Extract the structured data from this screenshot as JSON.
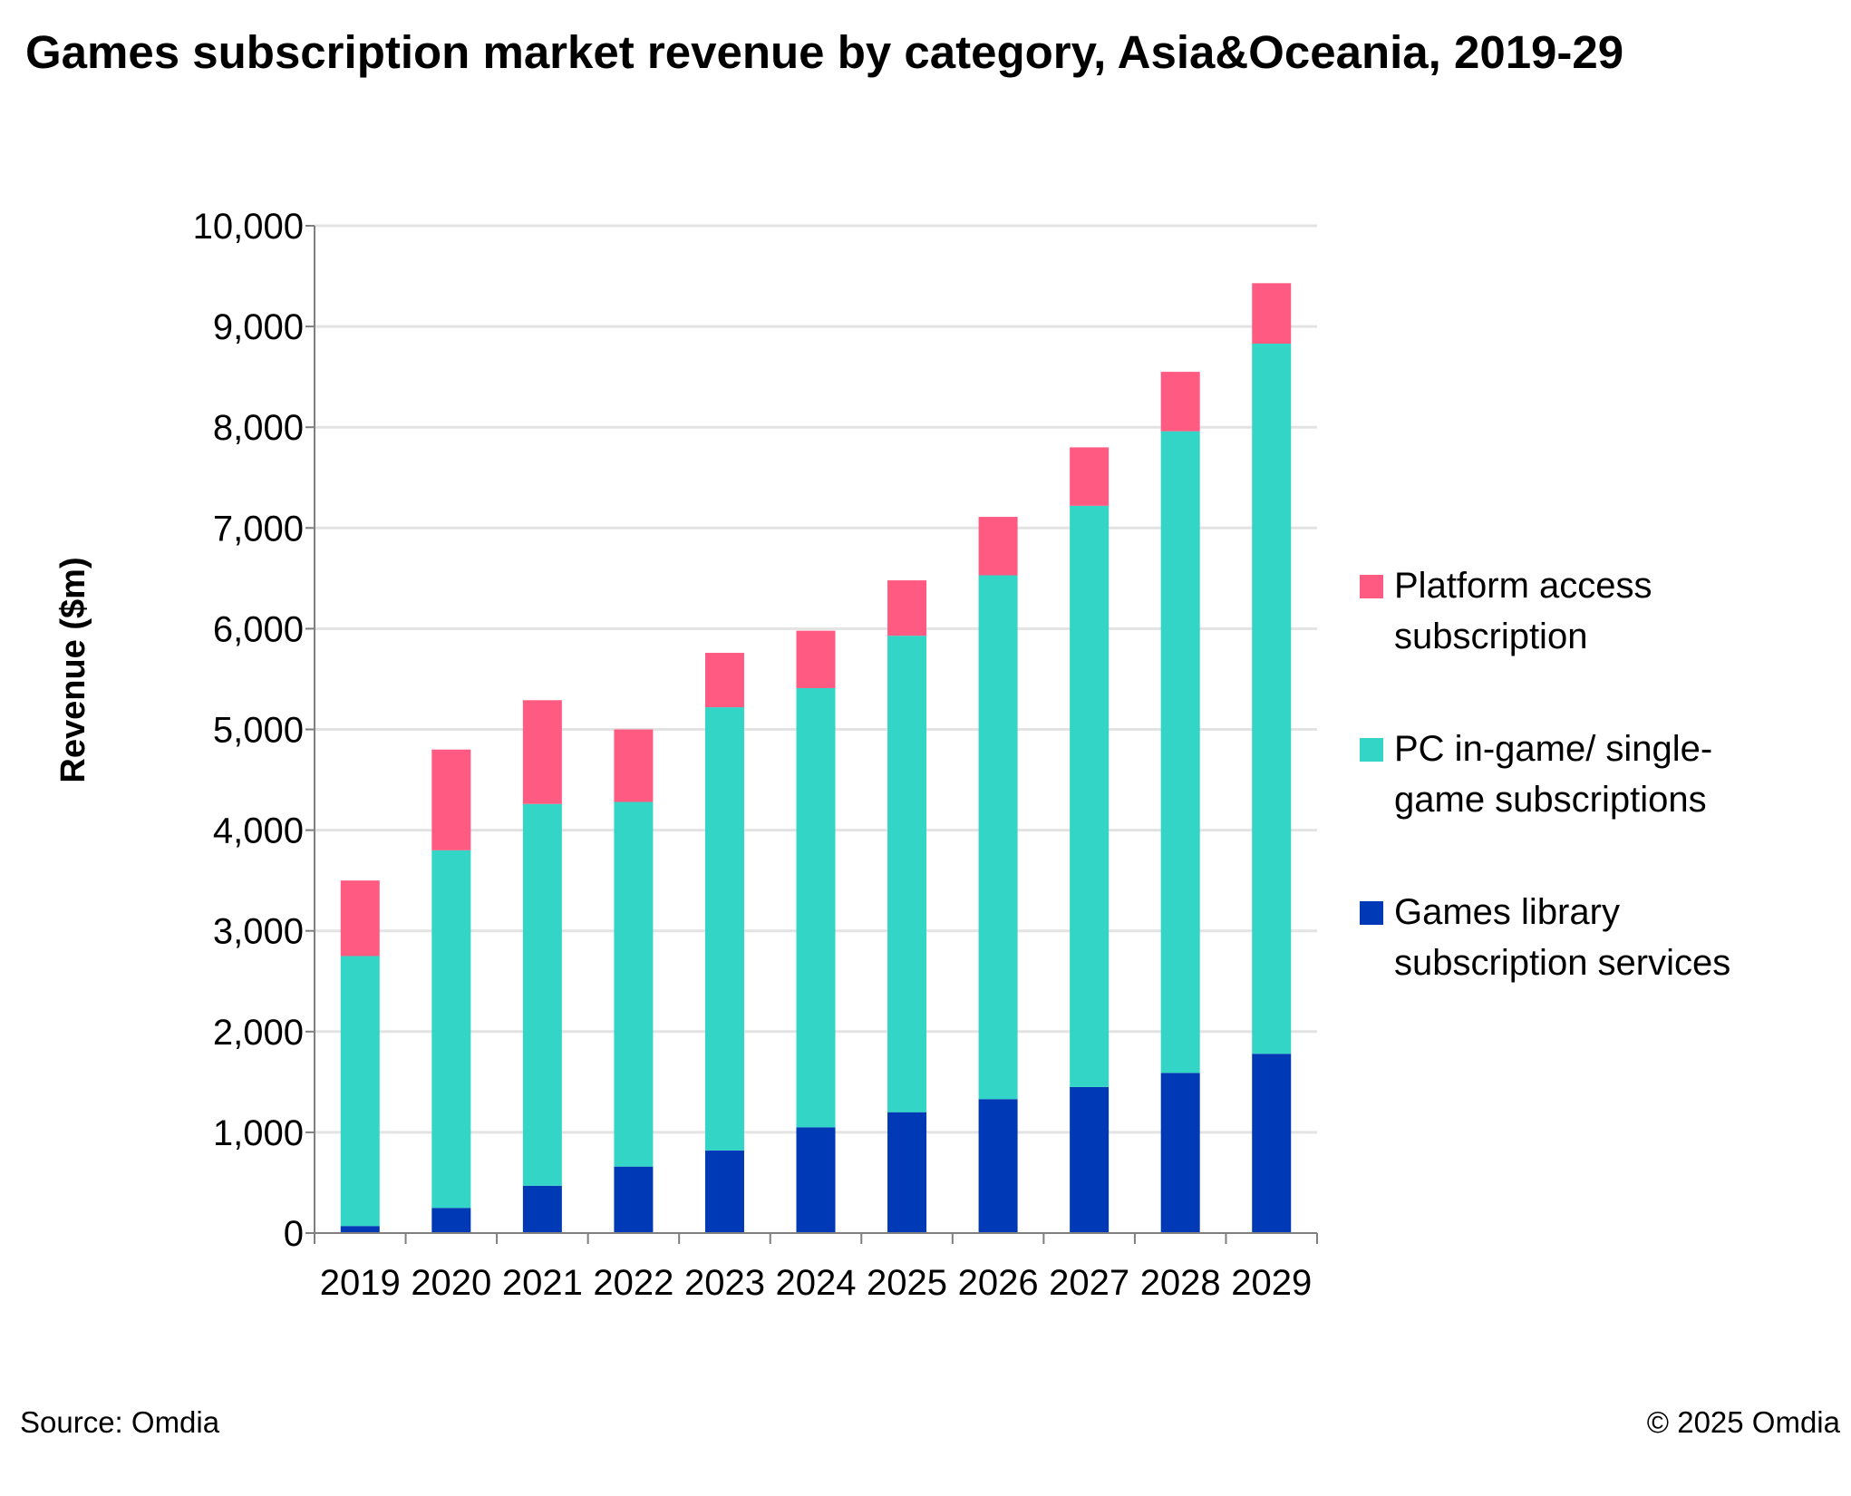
{
  "title": "Games subscription market revenue by category, Asia&Oceania, 2019-29",
  "footer": {
    "source": "Source: Omdia",
    "copyright": "© 2025 Omdia"
  },
  "colors": {
    "platform": "#FF5A82",
    "pc": "#33D6C6",
    "library": "#0039B5",
    "grid": "#E3E3E3",
    "axis": "#7F7F7F"
  },
  "legend": [
    {
      "key": "platform",
      "lines": [
        "Platform access",
        "subscription"
      ]
    },
    {
      "key": "pc",
      "lines": [
        "PC in-game/ single-",
        "game subscriptions"
      ]
    },
    {
      "key": "library",
      "lines": [
        "Games library",
        "subscription services"
      ]
    }
  ],
  "chart_data": {
    "type": "bar",
    "stacked": true,
    "title": "Games subscription market revenue by category, Asia&Oceania, 2019-29",
    "xlabel": "",
    "ylabel": "Revenue ($m)",
    "ylim": [
      0,
      10000
    ],
    "yticks": [
      0,
      1000,
      2000,
      3000,
      4000,
      5000,
      6000,
      7000,
      8000,
      9000,
      10000
    ],
    "ytick_labels": [
      "0",
      "1,000",
      "2,000",
      "3,000",
      "4,000",
      "5,000",
      "6,000",
      "7,000",
      "8,000",
      "9,000",
      "10,000"
    ],
    "grid": true,
    "legend_position": "right",
    "categories": [
      "2019",
      "2020",
      "2021",
      "2022",
      "2023",
      "2024",
      "2025",
      "2026",
      "2027",
      "2028",
      "2029"
    ],
    "series": [
      {
        "key": "library",
        "name": "Games library subscription services",
        "color": "#0039B5",
        "values": [
          70,
          250,
          470,
          660,
          820,
          1050,
          1200,
          1330,
          1450,
          1590,
          1780
        ]
      },
      {
        "key": "pc",
        "name": "PC in-game/ single-game subscriptions",
        "color": "#33D6C6",
        "values": [
          2680,
          3550,
          3790,
          3620,
          4400,
          4360,
          4730,
          5200,
          5770,
          6370,
          7050
        ]
      },
      {
        "key": "platform",
        "name": "Platform access subscription",
        "color": "#FF5A82",
        "values": [
          750,
          1000,
          1030,
          720,
          540,
          570,
          550,
          580,
          580,
          590,
          600
        ]
      }
    ]
  }
}
